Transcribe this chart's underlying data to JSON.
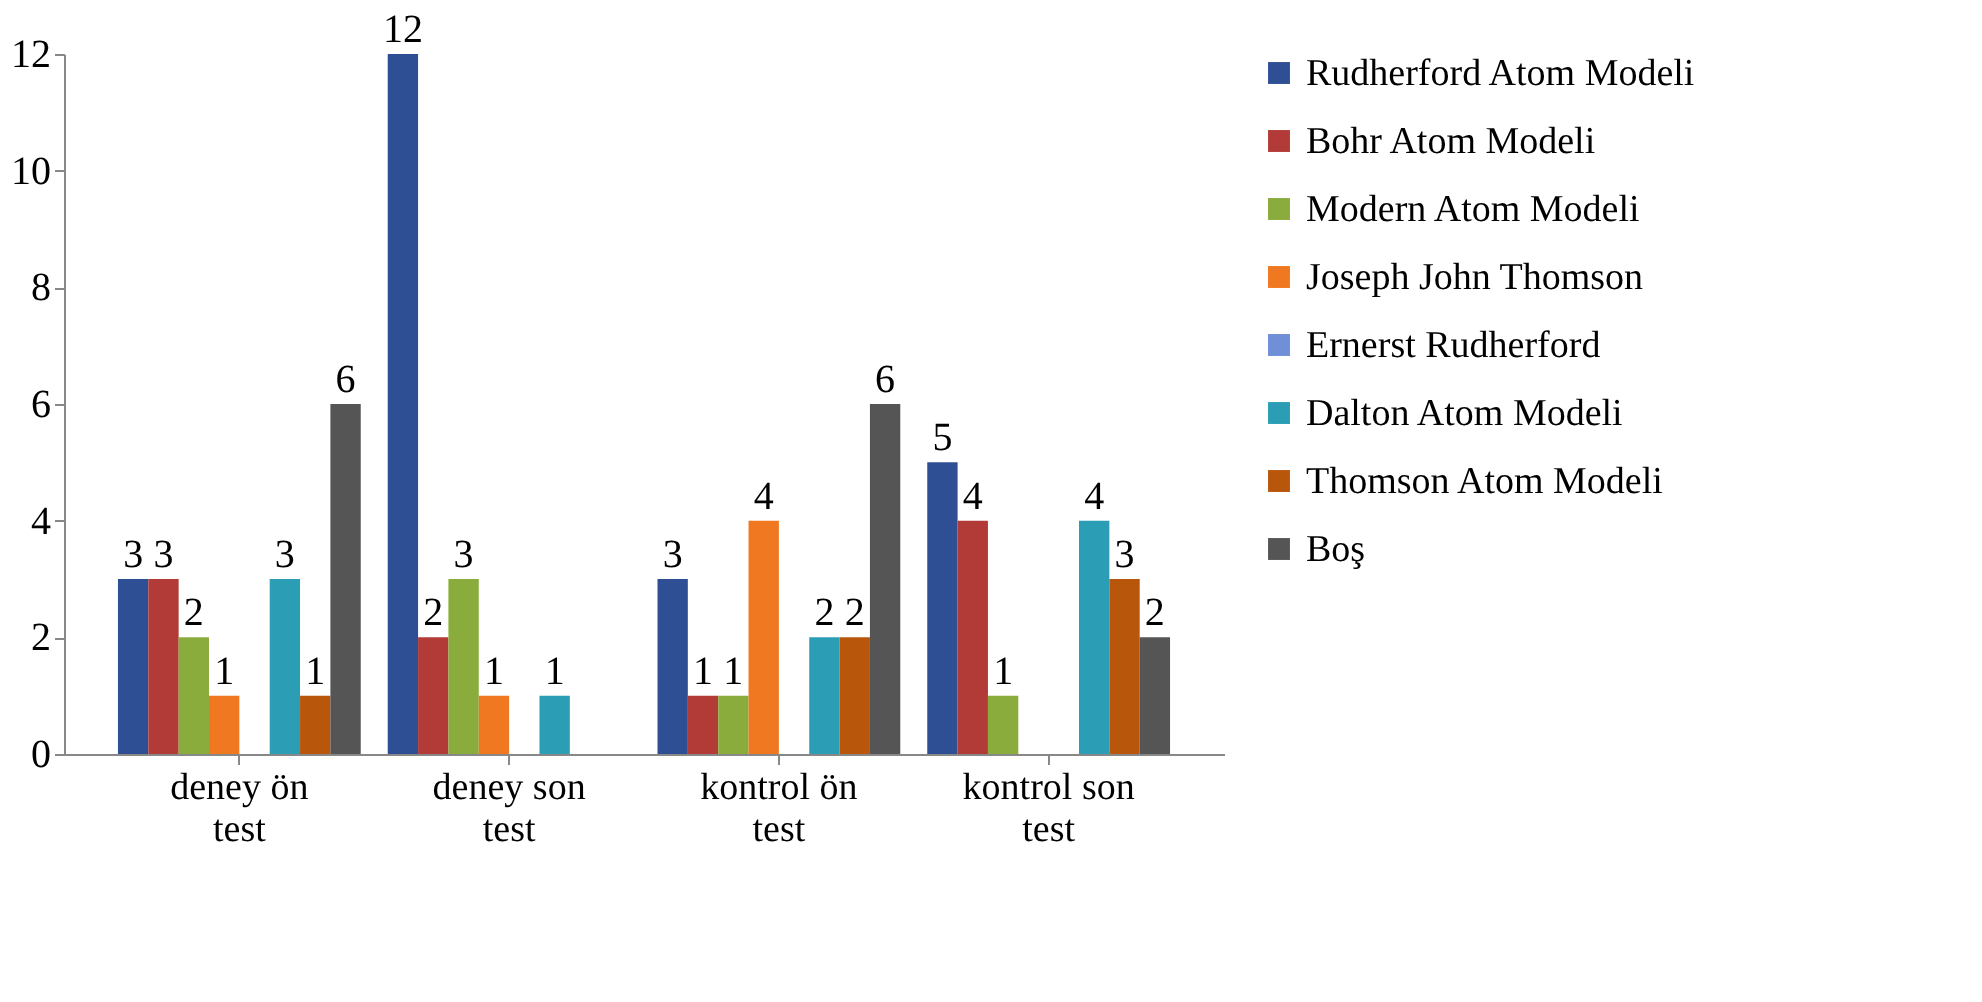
{
  "chart_data": {
    "type": "bar",
    "categories": [
      "deney ön test",
      "deney son test",
      "kontrol ön test",
      "kontrol son test"
    ],
    "series": [
      {
        "name": "Rudherford Atom Modeli",
        "color": "#2f4f94",
        "values": [
          3,
          12,
          3,
          5
        ]
      },
      {
        "name": "Bohr Atom Modeli",
        "color": "#b23b38",
        "values": [
          3,
          2,
          1,
          4
        ]
      },
      {
        "name": "Modern Atom Modeli",
        "color": "#8aac3c",
        "values": [
          2,
          3,
          1,
          1
        ]
      },
      {
        "name": "Joseph John Thomson",
        "color": "#f07820",
        "values": [
          1,
          1,
          4,
          null
        ]
      },
      {
        "name": "Ernerst Rudherford",
        "color": "#6f8fd6",
        "values": [
          null,
          null,
          null,
          null
        ]
      },
      {
        "name": "Dalton Atom Modeli",
        "color": "#2b9db5",
        "values": [
          3,
          1,
          2,
          4
        ]
      },
      {
        "name": "Thomson Atom Modeli",
        "color": "#b8560c",
        "values": [
          1,
          null,
          2,
          3
        ]
      },
      {
        "name": "Boş",
        "color": "#555555",
        "values": [
          6,
          null,
          6,
          2
        ]
      }
    ],
    "ylim": [
      0,
      12
    ],
    "yticks": [
      0,
      2,
      4,
      6,
      8,
      10,
      12
    ],
    "grid": false,
    "legend": "right",
    "data_labels": true
  }
}
